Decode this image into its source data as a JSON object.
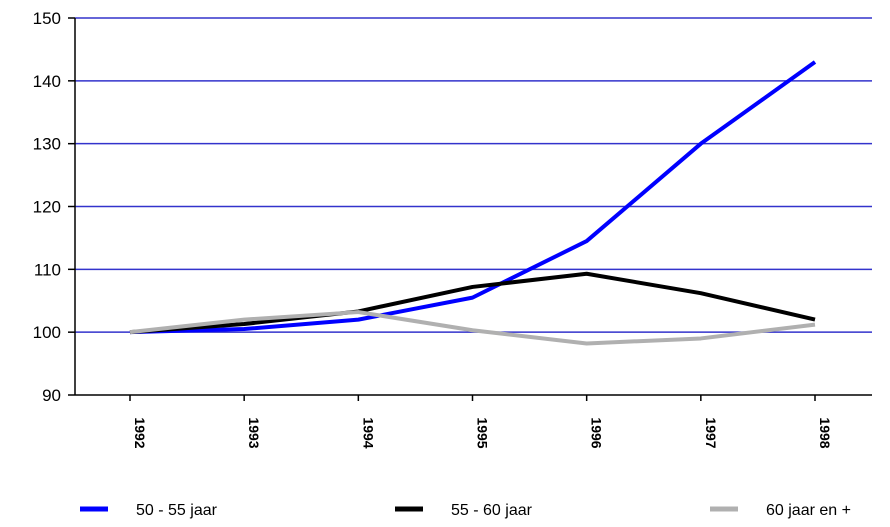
{
  "chart_data": {
    "type": "line",
    "title": "",
    "xlabel": "",
    "ylabel": "",
    "categories": [
      "1992",
      "1993",
      "1994",
      "1995",
      "1996",
      "1997",
      "1998"
    ],
    "ylim": [
      90,
      150
    ],
    "yticks": [
      90,
      100,
      110,
      120,
      130,
      140,
      150
    ],
    "grid": true,
    "legend_position": "bottom",
    "series": [
      {
        "name": "50 - 55 jaar",
        "color": "#0000ff",
        "values": [
          100,
          100.5,
          102,
          105.5,
          114.5,
          130,
          143
        ]
      },
      {
        "name": "55 - 60 jaar",
        "color": "#000000",
        "values": [
          100,
          101.3,
          103.3,
          107.2,
          109.3,
          106.2,
          102
        ]
      },
      {
        "name": "60 jaar en +",
        "color": "#b0b0b0",
        "values": [
          100,
          102,
          103.2,
          100.3,
          98.2,
          99,
          101.2
        ]
      }
    ],
    "gridline_color": "#3333cc"
  }
}
